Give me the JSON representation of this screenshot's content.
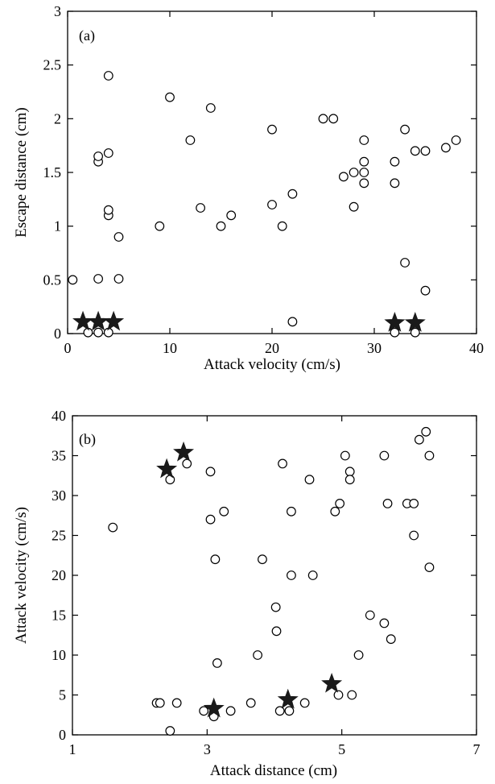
{
  "chart_data": [
    {
      "type": "scatter",
      "panel_label": "(a)",
      "xlabel": "Attack velocity (cm/s)",
      "ylabel": "Escape distance (cm)",
      "xlim": [
        0,
        40
      ],
      "ylim": [
        0,
        3
      ],
      "xticks": [
        0,
        10,
        20,
        30,
        40
      ],
      "yticks": [
        0,
        0.5,
        1,
        1.5,
        2,
        2.5,
        3
      ],
      "xtick_labels": [
        "0",
        "10",
        "20",
        "30",
        "40"
      ],
      "ytick_labels": [
        "0",
        "0.5",
        "1",
        "1.5",
        "2",
        "2.5",
        "3"
      ],
      "grid": false,
      "series": [
        {
          "marker": "open-circle",
          "points": [
            [
              0.5,
              0.5
            ],
            [
              2,
              0.01
            ],
            [
              3,
              0.01
            ],
            [
              4,
              0.01
            ],
            [
              3,
              0.51
            ],
            [
              5,
              0.51
            ],
            [
              5,
              0.9
            ],
            [
              4,
              1.1
            ],
            [
              4,
              1.15
            ],
            [
              3,
              1.6
            ],
            [
              3,
              1.65
            ],
            [
              4,
              1.68
            ],
            [
              4,
              2.4
            ],
            [
              9,
              1.0
            ],
            [
              10,
              2.2
            ],
            [
              12,
              1.8
            ],
            [
              13,
              1.17
            ],
            [
              14,
              2.1
            ],
            [
              15,
              1.0
            ],
            [
              16,
              1.1
            ],
            [
              20,
              1.9
            ],
            [
              20,
              1.2
            ],
            [
              21,
              1.0
            ],
            [
              22,
              1.3
            ],
            [
              22,
              0.11
            ],
            [
              25,
              2.0
            ],
            [
              26,
              2.0
            ],
            [
              27,
              1.46
            ],
            [
              28,
              1.5
            ],
            [
              28,
              1.18
            ],
            [
              29,
              1.8
            ],
            [
              29,
              1.6
            ],
            [
              29,
              1.5
            ],
            [
              29,
              1.4
            ],
            [
              32,
              1.6
            ],
            [
              32,
              1.4
            ],
            [
              32,
              0.01
            ],
            [
              33,
              1.9
            ],
            [
              33,
              0.66
            ],
            [
              34,
              1.7
            ],
            [
              34,
              0.01
            ],
            [
              35,
              1.7
            ],
            [
              35,
              0.4
            ],
            [
              37,
              1.73
            ],
            [
              38,
              1.8
            ]
          ]
        },
        {
          "marker": "filled-star",
          "points": [
            [
              1.5,
              0.11
            ],
            [
              3,
              0.11
            ],
            [
              4.5,
              0.11
            ],
            [
              32,
              0.1
            ],
            [
              34,
              0.1
            ]
          ]
        }
      ]
    },
    {
      "type": "scatter",
      "panel_label": "(b)",
      "xlabel": "Attack distance (cm)",
      "ylabel": "Attack velocity (cm/s)",
      "xlim": [
        1,
        7
      ],
      "ylim": [
        0,
        40
      ],
      "xticks": [
        1,
        3,
        5,
        7
      ],
      "yticks": [
        0,
        5,
        10,
        15,
        20,
        25,
        30,
        35,
        40
      ],
      "xtick_labels": [
        "1",
        "3",
        "5",
        "7"
      ],
      "ytick_labels": [
        "0",
        "5",
        "10",
        "15",
        "20",
        "25",
        "30",
        "35",
        "40"
      ],
      "grid": false,
      "series": [
        {
          "marker": "open-circle",
          "points": [
            [
              1.6,
              26
            ],
            [
              2.25,
              4
            ],
            [
              2.3,
              4
            ],
            [
              2.45,
              0.5
            ],
            [
              2.45,
              32
            ],
            [
              2.55,
              4
            ],
            [
              2.7,
              34
            ],
            [
              2.95,
              3
            ],
            [
              3.05,
              33
            ],
            [
              3.05,
              27
            ],
            [
              3.1,
              2.3
            ],
            [
              3.12,
              22
            ],
            [
              3.15,
              9
            ],
            [
              3.25,
              28
            ],
            [
              3.35,
              3
            ],
            [
              3.65,
              4
            ],
            [
              3.75,
              10
            ],
            [
              3.82,
              22
            ],
            [
              4.02,
              16
            ],
            [
              4.03,
              13
            ],
            [
              4.08,
              3
            ],
            [
              4.12,
              34
            ],
            [
              4.22,
              3
            ],
            [
              4.25,
              28
            ],
            [
              4.25,
              20
            ],
            [
              4.45,
              4
            ],
            [
              4.52,
              32
            ],
            [
              4.57,
              20
            ],
            [
              4.9,
              28
            ],
            [
              4.95,
              5
            ],
            [
              4.97,
              29
            ],
            [
              5.05,
              35
            ],
            [
              5.12,
              33
            ],
            [
              5.12,
              32
            ],
            [
              5.15,
              5
            ],
            [
              5.25,
              10
            ],
            [
              5.42,
              15
            ],
            [
              5.63,
              35
            ],
            [
              5.63,
              14
            ],
            [
              5.68,
              29
            ],
            [
              5.73,
              12
            ],
            [
              5.97,
              29
            ],
            [
              6.07,
              29
            ],
            [
              6.07,
              25
            ],
            [
              6.15,
              37
            ],
            [
              6.25,
              38
            ],
            [
              6.3,
              35
            ],
            [
              6.3,
              21
            ]
          ]
        },
        {
          "marker": "filled-star",
          "points": [
            [
              2.4,
              33.3
            ],
            [
              2.65,
              35.4
            ],
            [
              3.1,
              3.3
            ],
            [
              4.2,
              4.4
            ],
            [
              4.85,
              6.4
            ]
          ]
        }
      ]
    }
  ]
}
